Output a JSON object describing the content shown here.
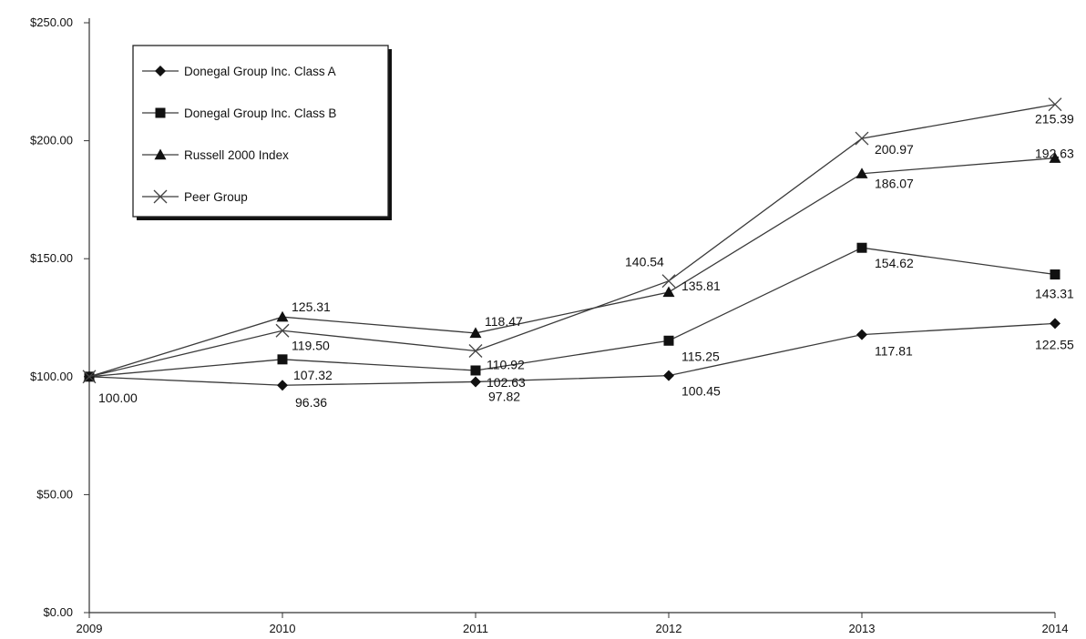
{
  "chart_data": {
    "type": "line",
    "title": "",
    "xlabel": "",
    "ylabel": "",
    "x": [
      "2009",
      "2010",
      "2011",
      "2012",
      "2013",
      "2014"
    ],
    "ylim": [
      0,
      250
    ],
    "y_ticks": [
      "$0.00",
      "$50.00",
      "$100.00",
      "$150.00",
      "$200.00",
      "$250.00"
    ],
    "grid": false,
    "legend_position": "top-left",
    "series": [
      {
        "name": "Donegal Group Inc. Class A",
        "marker": "diamond",
        "values": [
          100.0,
          96.36,
          97.82,
          100.45,
          117.81,
          122.55
        ],
        "labels": [
          "100.00",
          "96.36",
          "97.82",
          "100.45",
          "117.81",
          "122.55"
        ]
      },
      {
        "name": "Donegal Group Inc. Class B",
        "marker": "square",
        "values": [
          100.0,
          107.32,
          102.63,
          115.25,
          154.62,
          143.31
        ],
        "labels": [
          "",
          "107.32",
          "102.63",
          "115.25",
          "154.62",
          "143.31"
        ]
      },
      {
        "name": "Russell 2000 Index",
        "marker": "triangle",
        "values": [
          100.0,
          125.31,
          118.47,
          135.81,
          186.07,
          192.63
        ],
        "labels": [
          "",
          "125.31",
          "118.47",
          "135.81",
          "186.07",
          "192.63"
        ]
      },
      {
        "name": "Peer Group",
        "marker": "x",
        "values": [
          100.0,
          119.5,
          110.92,
          140.54,
          200.97,
          215.39
        ],
        "labels": [
          "",
          "119.50",
          "110.92",
          "140.54",
          "200.97",
          "215.39"
        ]
      }
    ]
  }
}
